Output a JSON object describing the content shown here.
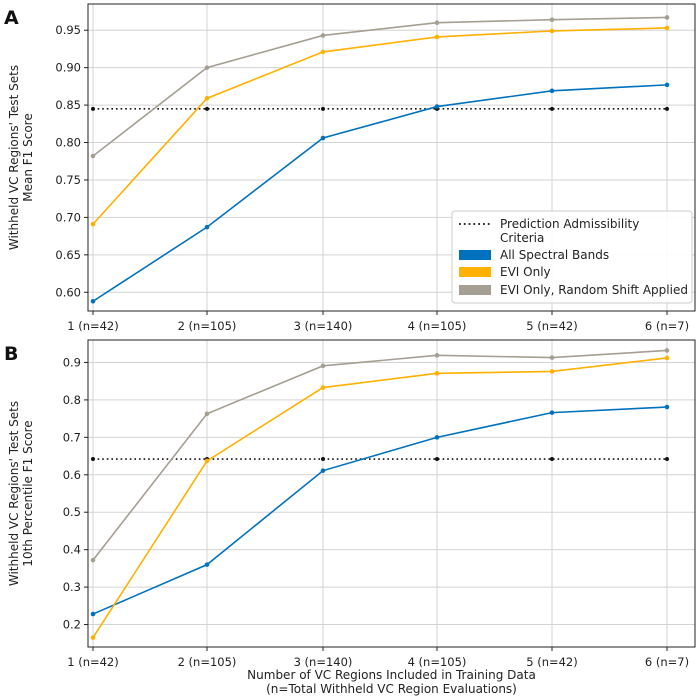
{
  "chart_data": [
    {
      "type": "line",
      "panel_label": "A",
      "categories": [
        "1 (n=42)",
        "2 (n=105)",
        "3 (n=140)",
        "4 (n=105)",
        "5 (n=42)",
        "6 (n=7)"
      ],
      "ylabel_lines": [
        "Withheld VC Regions' Test Sets",
        "Mean F1 Score"
      ],
      "ylim": [
        0.575,
        0.985
      ],
      "yticks": [
        0.6,
        0.65,
        0.7,
        0.75,
        0.8,
        0.85,
        0.9,
        0.95
      ],
      "ytick_labels": [
        "0.60",
        "0.65",
        "0.70",
        "0.75",
        "0.80",
        "0.85",
        "0.90",
        "0.95"
      ],
      "grid": true,
      "threshold": {
        "name": "Prediction Admissibility Criteria",
        "value": 0.845
      },
      "series": [
        {
          "name": "All Spectral Bands",
          "values": [
            0.588,
            0.687,
            0.806,
            0.848,
            0.869,
            0.877
          ]
        },
        {
          "name": "EVI Only",
          "values": [
            0.691,
            0.859,
            0.921,
            0.941,
            0.949,
            0.953
          ]
        },
        {
          "name": "EVI Only, Random Shift Applied",
          "values": [
            0.782,
            0.9,
            0.943,
            0.96,
            0.964,
            0.967
          ]
        }
      ]
    },
    {
      "type": "line",
      "panel_label": "B",
      "categories": [
        "1 (n=42)",
        "2 (n=105)",
        "3 (n=140)",
        "4 (n=105)",
        "5 (n=42)",
        "6 (n=7)"
      ],
      "ylabel_lines": [
        "Withheld VC Regions' Test Sets",
        "10th Percentile F1 Score"
      ],
      "ylim": [
        0.14,
        0.96
      ],
      "yticks": [
        0.2,
        0.3,
        0.4,
        0.5,
        0.6,
        0.7,
        0.8,
        0.9
      ],
      "ytick_labels": [
        "0.2",
        "0.3",
        "0.4",
        "0.5",
        "0.6",
        "0.7",
        "0.8",
        "0.9"
      ],
      "grid": true,
      "threshold": {
        "name": "Prediction Admissibility Criteria",
        "value": 0.642
      },
      "xlabel_lines": [
        "Number of VC Regions Included in Training Data",
        "(n=Total Withheld VC Region Evaluations)"
      ],
      "series": [
        {
          "name": "All Spectral Bands",
          "values": [
            0.228,
            0.36,
            0.611,
            0.7,
            0.766,
            0.781
          ]
        },
        {
          "name": "EVI Only",
          "values": [
            0.165,
            0.637,
            0.833,
            0.871,
            0.876,
            0.912
          ]
        },
        {
          "name": "EVI Only, Random Shift Applied",
          "values": [
            0.372,
            0.763,
            0.891,
            0.919,
            0.913,
            0.932
          ]
        }
      ]
    }
  ],
  "legend": {
    "position": "lower-right of panel A",
    "entries": [
      {
        "label_lines": [
          "Prediction Admissibility",
          "Criteria"
        ],
        "style": "dotted"
      },
      {
        "label_lines": [
          "All Spectral Bands"
        ],
        "style": "patch"
      },
      {
        "label_lines": [
          "EVI Only"
        ],
        "style": "patch"
      },
      {
        "label_lines": [
          "EVI Only, Random Shift Applied"
        ],
        "style": "patch"
      }
    ]
  },
  "colors": {
    "all_spectral_bands": "#0072bd",
    "evi_only": "#ffb000",
    "evi_random_shift": "#a59e92",
    "threshold": "#111111",
    "grid": "#d3d3d3",
    "axes": "#222222"
  }
}
